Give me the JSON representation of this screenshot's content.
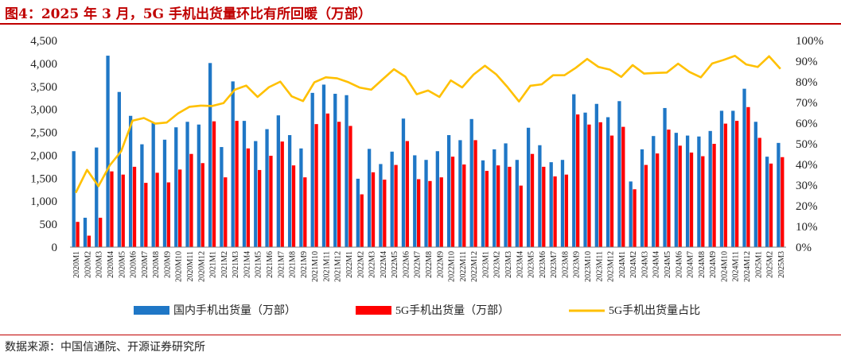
{
  "figure_title": "图4：2025 年 3 月，5G 手机出货量环比有所回暖（万部）",
  "source_note": "数据来源：中国信通院、开源证券研究所",
  "colors": {
    "total": "#1f77c6",
    "fiveg": "#ff0000",
    "share": "#ffc000",
    "title": "#c00000"
  },
  "chart_data": {
    "type": "bar",
    "categories": [
      "2020M1",
      "2020M2",
      "2020M3",
      "2020M4",
      "2020M5",
      "2020M6",
      "2020M7",
      "2020M8",
      "2020M9",
      "2020M10",
      "2020M11",
      "2020M12",
      "2021M1",
      "2021M2",
      "2021M3",
      "2021M4",
      "2021M5",
      "2021M6",
      "2021M7",
      "2021M8",
      "2021M9",
      "2021M10",
      "2021M11",
      "2021M12",
      "2022M1",
      "2022M2",
      "2022M3",
      "2022M4",
      "2022M5",
      "2022M6",
      "2022M7",
      "2022M8",
      "2022M9",
      "2022M10",
      "2022M11",
      "2022M12",
      "2023M1",
      "2023M2",
      "2023M3",
      "2023M4",
      "2023M5",
      "2023M6",
      "2023M7",
      "2023M8",
      "2023M9",
      "2023M10",
      "2023M11",
      "2023M12",
      "2024M1",
      "2024M2",
      "2024M3",
      "2024M4",
      "2024M5",
      "2024M6",
      "2024M7",
      "2024M8",
      "2024M9",
      "2024M10",
      "2024M11",
      "2024M12",
      "2025M1",
      "2025M2",
      "2025M3"
    ],
    "series": [
      {
        "name": "国内手机出货量（万部）",
        "type": "bar",
        "axis": "left",
        "values": [
          2090,
          640,
          2170,
          4170,
          3380,
          2860,
          2240,
          2710,
          2340,
          2610,
          2730,
          2670,
          4010,
          2180,
          3610,
          2750,
          2310,
          2570,
          2870,
          2440,
          2150,
          3360,
          3540,
          3340,
          3310,
          1490,
          2140,
          1810,
          2080,
          2800,
          2000,
          1900,
          2090,
          2440,
          2330,
          2790,
          1890,
          2130,
          2260,
          1900,
          2600,
          2220,
          1850,
          1900,
          3330,
          2930,
          3120,
          2830,
          3180,
          1430,
          2130,
          2420,
          3030,
          2490,
          2430,
          2410,
          2530,
          2970,
          2970,
          3450,
          2730,
          1970,
          2270
        ]
      },
      {
        "name": "5G手机出货量（万部）",
        "type": "bar",
        "axis": "left",
        "values": [
          550,
          250,
          640,
          1650,
          1580,
          1750,
          1400,
          1620,
          1410,
          1690,
          2030,
          1830,
          2740,
          1520,
          2750,
          2150,
          1680,
          1990,
          2300,
          1780,
          1520,
          2680,
          2910,
          2730,
          2640,
          1150,
          1630,
          1470,
          1790,
          2310,
          1480,
          1440,
          1520,
          1970,
          1800,
          2330,
          1660,
          1780,
          1750,
          1340,
          2030,
          1750,
          1540,
          1580,
          2890,
          2670,
          2720,
          2430,
          2620,
          1260,
          1790,
          2040,
          2560,
          2210,
          2060,
          1980,
          2250,
          2690,
          2750,
          3050,
          2380,
          1820,
          1960
        ]
      },
      {
        "name": "5G手机出货量占比",
        "type": "line",
        "axis": "right",
        "values": [
          26.3,
          37.4,
          29.5,
          39.6,
          46.4,
          61.2,
          62.5,
          59.8,
          60.3,
          64.7,
          67.9,
          68.5,
          68.3,
          69.7,
          76.2,
          78.2,
          72.7,
          77.4,
          80.1,
          73.0,
          70.7,
          79.8,
          82.2,
          81.7,
          79.8,
          77.2,
          76.2,
          81.2,
          86.1,
          82.5,
          74.0,
          75.8,
          72.7,
          80.7,
          77.3,
          83.5,
          87.8,
          83.6,
          77.4,
          70.5,
          78.1,
          78.8,
          83.2,
          83.2,
          86.8,
          91.1,
          87.2,
          85.9,
          82.4,
          88.1,
          84.0,
          84.3,
          84.5,
          88.8,
          84.8,
          82.2,
          88.9,
          90.6,
          92.6,
          88.4,
          87.2,
          92.4,
          86.3
        ]
      }
    ],
    "y_left": {
      "min": 0,
      "max": 4500,
      "step": 500,
      "tick_labels": [
        "0",
        "500",
        "1,000",
        "1,500",
        "2,000",
        "2,500",
        "3,000",
        "3,500",
        "4,000",
        "4,500"
      ]
    },
    "y_right": {
      "min": 0,
      "max": 100,
      "step": 10,
      "tick_labels": [
        "0%",
        "10%",
        "20%",
        "30%",
        "40%",
        "50%",
        "60%",
        "70%",
        "80%",
        "90%",
        "100%"
      ]
    },
    "legend": {
      "position": "bottom",
      "items": [
        "国内手机出货量（万部）",
        "5G手机出货量（万部）",
        "5G手机出货量占比"
      ]
    },
    "grid": false
  }
}
